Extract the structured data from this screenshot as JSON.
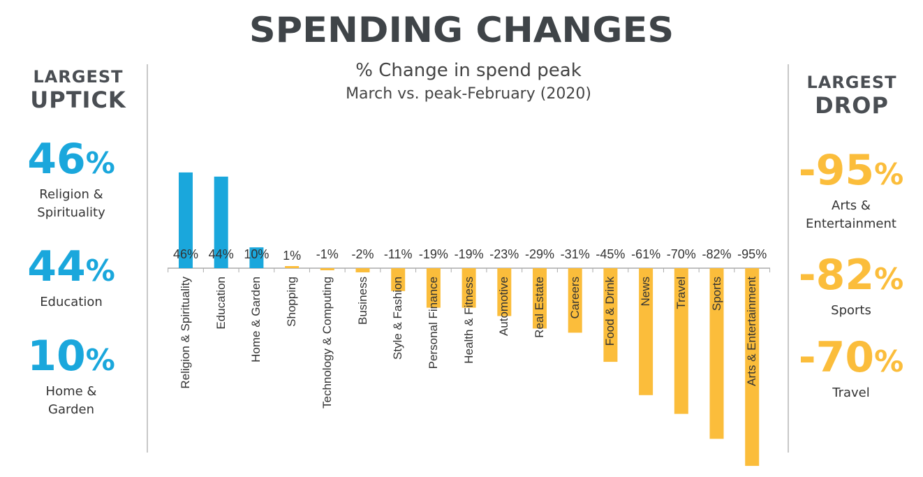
{
  "title": "SPENDING CHANGES",
  "colors": {
    "positive": "#1aa7dc",
    "negative": "#fbbd3b",
    "title": "#3f4448"
  },
  "left_panel": {
    "heading_line1": "LARGEST",
    "heading_line2": "UPTICK",
    "items": [
      {
        "value": "46",
        "unit": "%",
        "line1": "Religion &",
        "line2": "Spirituality"
      },
      {
        "value": "44",
        "unit": "%",
        "line1": "Education",
        "line2": ""
      },
      {
        "value": "10",
        "unit": "%",
        "line1": "Home &",
        "line2": "Garden"
      }
    ]
  },
  "right_panel": {
    "heading_line1": "LARGEST",
    "heading_line2": "DROP",
    "items": [
      {
        "value": "-95",
        "unit": "%",
        "line1": "Arts &",
        "line2": "Entertainment"
      },
      {
        "value": "-82",
        "unit": "%",
        "line1": "Sports",
        "line2": ""
      },
      {
        "value": "-70",
        "unit": "%",
        "line1": "Travel",
        "line2": ""
      }
    ]
  },
  "chart_data": {
    "type": "bar",
    "title": "% Change in spend peak",
    "subtitle": "March vs. peak-February (2020)",
    "categories": [
      "Religion & Spirituality",
      "Education",
      "Home & Garden",
      "Shopping",
      "Technology & Computing",
      "Business",
      "Style & Fashion",
      "Personal Finance",
      "Health & Fitness",
      "Automotive",
      "Real Estate",
      "Careers",
      "Food & Drink",
      "News",
      "Travel",
      "Sports",
      "Arts & Entertainment"
    ],
    "values": [
      46,
      44,
      10,
      1,
      -1,
      -2,
      -11,
      -19,
      -19,
      -23,
      -29,
      -31,
      -45,
      -61,
      -70,
      -82,
      -95
    ],
    "data_labels": [
      "46%",
      "44%",
      "10%",
      "1%",
      "-1%",
      "-2%",
      "-11%",
      "-19%",
      "-19%",
      "-23%",
      "-29%",
      "-31%",
      "-45%",
      "-61%",
      "-70%",
      "-82%",
      "-95%"
    ],
    "ylim": [
      -95,
      46
    ],
    "grid": false,
    "legend": "none"
  }
}
